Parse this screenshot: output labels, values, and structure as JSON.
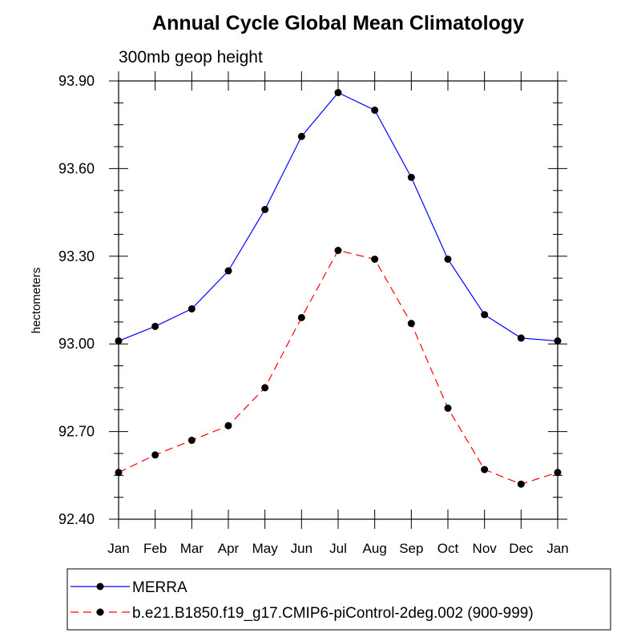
{
  "chart_data": {
    "type": "line",
    "title": "Annual Cycle Global Mean Climatology",
    "subtitle": "300mb geop height",
    "xlabel": "",
    "ylabel": "hectometers",
    "categories": [
      "Jan",
      "Feb",
      "Mar",
      "Apr",
      "May",
      "Jun",
      "Jul",
      "Aug",
      "Sep",
      "Oct",
      "Nov",
      "Dec",
      "Jan"
    ],
    "ylim": [
      92.4,
      93.9
    ],
    "yticks": [
      "92.40",
      "92.70",
      "93.00",
      "93.30",
      "93.60",
      "93.90"
    ],
    "grid": false,
    "legend_position": "bottom",
    "series": [
      {
        "name": "MERRA",
        "color": "#0000ff",
        "style": "solid",
        "values": [
          93.01,
          93.06,
          93.12,
          93.25,
          93.46,
          93.71,
          93.86,
          93.8,
          93.57,
          93.29,
          93.1,
          93.02,
          93.01
        ]
      },
      {
        "name": "b.e21.B1850.f19_g17.CMIP6-piControl-2deg.002 (900-999)",
        "color": "#ff0000",
        "style": "dashed",
        "values": [
          92.56,
          92.62,
          92.67,
          92.72,
          92.85,
          93.09,
          93.32,
          93.29,
          93.07,
          92.78,
          92.57,
          92.52,
          92.56
        ]
      }
    ]
  }
}
